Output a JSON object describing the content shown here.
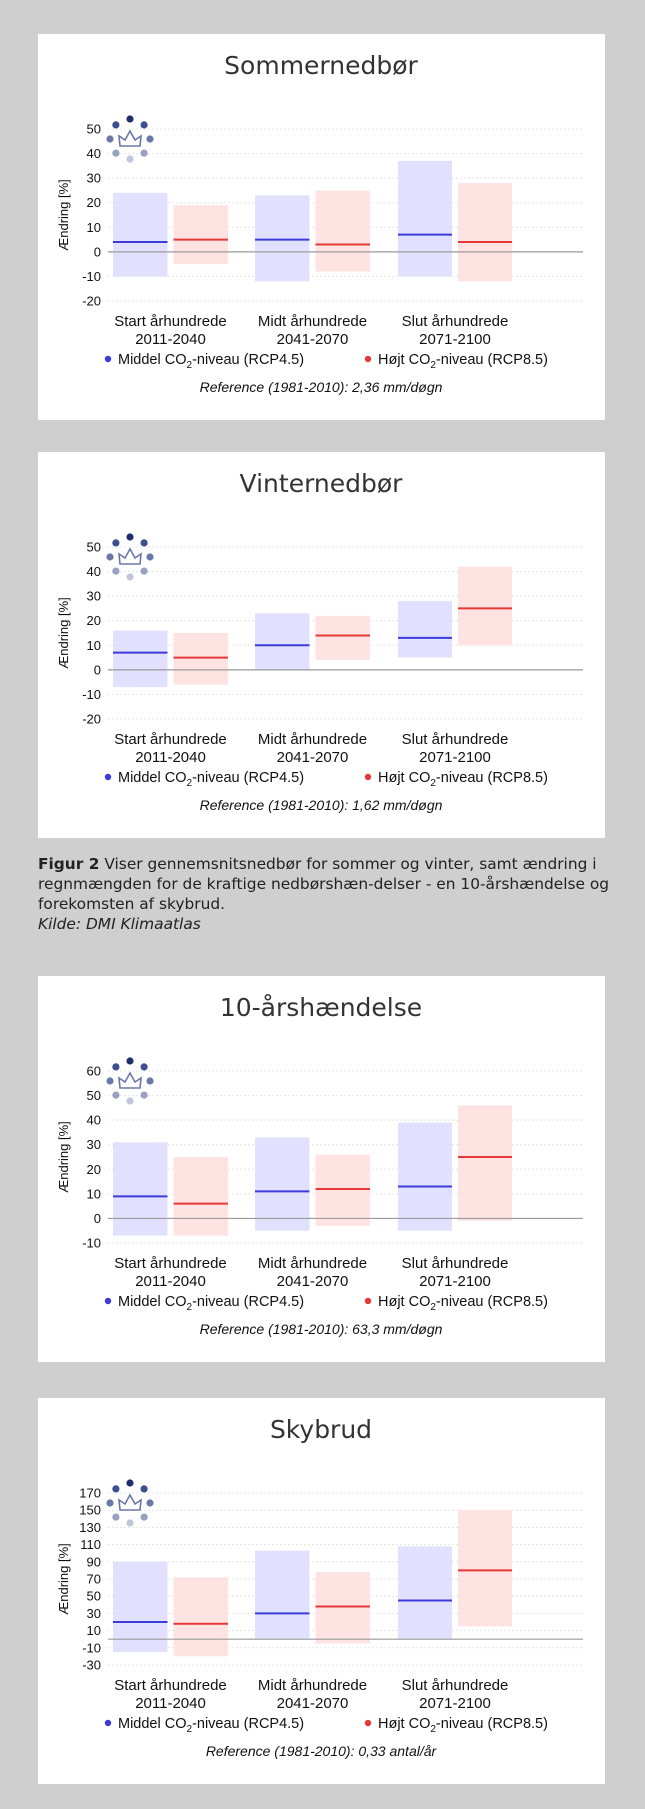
{
  "caption": {
    "lead": "Figur 2",
    "text": "Viser gennemsnitsnedbør for sommer og vinter, samt ændring i regnmængden for de kraftige nedbørshæn-delser - en 10-årshændelse og forekomsten af skybrud.",
    "source": "Kilde: DMI Klimaatlas"
  },
  "colors": {
    "rcp45": "#3b3bdb",
    "rcp85": "#e63838",
    "rcp45_band": "#dcdcff",
    "rcp85_band": "#ffdede"
  },
  "chart_data": [
    {
      "type": "bar",
      "title": "Sommernedbør",
      "ylabel": "Ændring [%]",
      "ylim": [
        -20,
        50
      ],
      "yticks": [
        50,
        40,
        30,
        20,
        10,
        0,
        -10,
        -20
      ],
      "categories": [
        {
          "line1": "Start århundrede",
          "line2": "2011-2040"
        },
        {
          "line1": "Midt århundrede",
          "line2": "2041-2070"
        },
        {
          "line1": "Slut århundrede",
          "line2": "2071-2100"
        }
      ],
      "series": [
        {
          "legend_prefix": "Middel CO",
          "legend_sub": "2",
          "legend_suffix": "-niveau (RCP4.5)",
          "low": [
            -10,
            -12,
            -10
          ],
          "high": [
            24,
            23,
            37
          ],
          "mean": [
            4,
            5,
            7
          ]
        },
        {
          "legend_prefix": "Højt CO",
          "legend_sub": "2",
          "legend_suffix": "-niveau (RCP8.5)",
          "low": [
            -5,
            -8,
            -12
          ],
          "high": [
            19,
            25,
            28
          ],
          "mean": [
            5,
            3,
            4
          ]
        }
      ],
      "reference": "Reference (1981-2010): 2,36 mm/døgn"
    },
    {
      "type": "bar",
      "title": "Vinternedbør",
      "ylabel": "Ændring [%]",
      "ylim": [
        -20,
        50
      ],
      "yticks": [
        50,
        40,
        30,
        20,
        10,
        0,
        -10,
        -20
      ],
      "categories": [
        {
          "line1": "Start århundrede",
          "line2": "2011-2040"
        },
        {
          "line1": "Midt århundrede",
          "line2": "2041-2070"
        },
        {
          "line1": "Slut århundrede",
          "line2": "2071-2100"
        }
      ],
      "series": [
        {
          "legend_prefix": "Middel CO",
          "legend_sub": "2",
          "legend_suffix": "-niveau (RCP4.5)",
          "low": [
            -7,
            0,
            5
          ],
          "high": [
            16,
            23,
            28
          ],
          "mean": [
            7,
            10,
            13
          ]
        },
        {
          "legend_prefix": "Højt CO",
          "legend_sub": "2",
          "legend_suffix": "-niveau (RCP8.5)",
          "low": [
            -6,
            4,
            10
          ],
          "high": [
            15,
            22,
            42
          ],
          "mean": [
            5,
            14,
            25
          ]
        }
      ],
      "reference": "Reference (1981-2010): 1,62 mm/døgn"
    },
    {
      "type": "bar",
      "title": "10-årshændelse",
      "ylabel": "Ændring [%]",
      "ylim": [
        -10,
        60
      ],
      "yticks": [
        60,
        50,
        40,
        30,
        20,
        10,
        0,
        -10
      ],
      "categories": [
        {
          "line1": "Start århundrede",
          "line2": "2011-2040"
        },
        {
          "line1": "Midt århundrede",
          "line2": "2041-2070"
        },
        {
          "line1": "Slut århundrede",
          "line2": "2071-2100"
        }
      ],
      "series": [
        {
          "legend_prefix": "Middel CO",
          "legend_sub": "2",
          "legend_suffix": "-niveau (RCP4.5)",
          "low": [
            -7,
            -5,
            -5
          ],
          "high": [
            31,
            33,
            39
          ],
          "mean": [
            9,
            11,
            13
          ]
        },
        {
          "legend_prefix": "Højt CO",
          "legend_sub": "2",
          "legend_suffix": "-niveau (RCP8.5)",
          "low": [
            -7,
            -3,
            -1
          ],
          "high": [
            25,
            26,
            46
          ],
          "mean": [
            6,
            12,
            25
          ]
        }
      ],
      "reference": "Reference (1981-2010): 63,3 mm/døgn"
    },
    {
      "type": "bar",
      "title": "Skybrud",
      "ylabel": "Ændring [%]",
      "ylim": [
        -30,
        170
      ],
      "yticks": [
        170,
        150,
        130,
        110,
        90,
        70,
        50,
        30,
        10,
        -10,
        -30
      ],
      "categories": [
        {
          "line1": "Start århundrede",
          "line2": "2011-2040"
        },
        {
          "line1": "Midt århundrede",
          "line2": "2041-2070"
        },
        {
          "line1": "Slut århundrede",
          "line2": "2071-2100"
        }
      ],
      "series": [
        {
          "legend_prefix": "Middel CO",
          "legend_sub": "2",
          "legend_suffix": "-niveau (RCP4.5)",
          "low": [
            -15,
            0,
            0
          ],
          "high": [
            90,
            103,
            108
          ],
          "mean": [
            20,
            30,
            45
          ]
        },
        {
          "legend_prefix": "Højt CO",
          "legend_sub": "2",
          "legend_suffix": "-niveau (RCP8.5)",
          "low": [
            -20,
            -5,
            15
          ],
          "high": [
            72,
            78,
            150
          ],
          "mean": [
            18,
            38,
            80
          ]
        }
      ],
      "reference": "Reference (1981-2010): 0,33 antal/år"
    }
  ]
}
